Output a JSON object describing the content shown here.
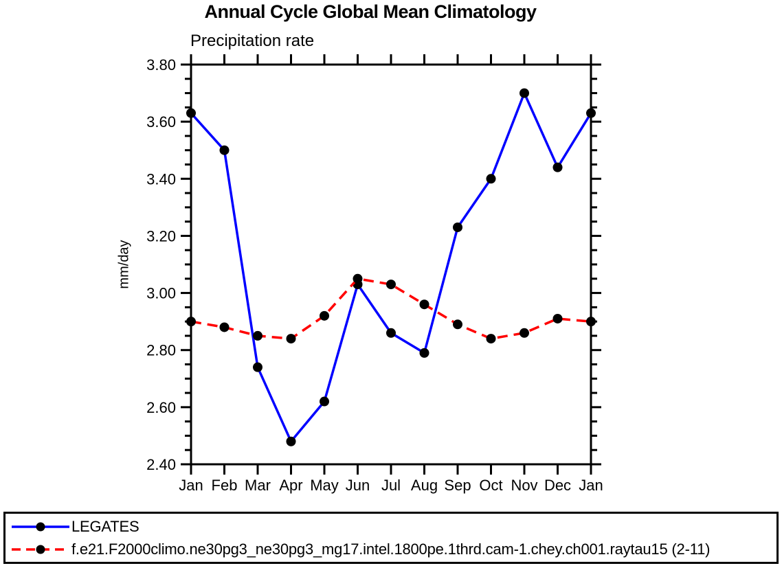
{
  "chart_data": {
    "type": "line",
    "title": "Annual Cycle Global Mean Climatology",
    "subtitle": "Precipitation rate",
    "xlabel": "",
    "ylabel": "mm/day",
    "x_tick_labels": [
      "Jan",
      "Feb",
      "Mar",
      "Apr",
      "May",
      "Jun",
      "Jul",
      "Aug",
      "Sep",
      "Oct",
      "Nov",
      "Dec",
      "Jan"
    ],
    "y_tick_labels": [
      "2.40",
      "2.60",
      "2.80",
      "3.00",
      "3.20",
      "3.40",
      "3.60",
      "3.80"
    ],
    "ylim": [
      2.4,
      3.8
    ],
    "y_major_step": 0.2,
    "y_minor_step": 0.05,
    "grid": false,
    "legend_position": "bottom",
    "axis_color": "#000000",
    "marker_color": "#000000",
    "series": [
      {
        "name": "LEGATES",
        "color": "#0000ff",
        "style": "solid",
        "values": [
          3.63,
          3.5,
          2.74,
          2.48,
          2.62,
          3.03,
          2.86,
          2.79,
          3.23,
          3.4,
          3.7,
          3.44,
          3.63
        ]
      },
      {
        "name": "f.e21.F2000climo.ne30pg3_ne30pg3_mg17.intel.1800pe.1thrd.cam-1.chey.ch001.raytau15 (2-11)",
        "color": "#ff0000",
        "style": "dashed",
        "values": [
          2.9,
          2.88,
          2.85,
          2.84,
          2.92,
          3.05,
          3.03,
          2.96,
          2.89,
          2.84,
          2.86,
          2.91,
          2.9
        ]
      }
    ]
  }
}
